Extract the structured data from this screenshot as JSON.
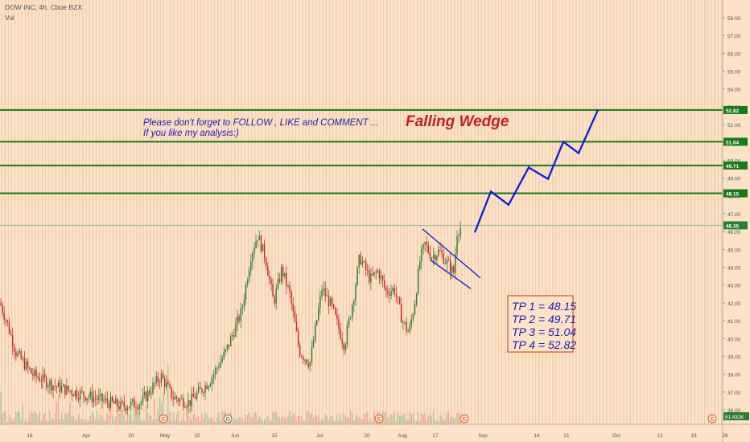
{
  "header": {
    "symbol_line": "DOW INC, 4h, Cboe BZX",
    "vol_label": "Vol"
  },
  "annotations": {
    "title": "Falling Wedge",
    "message_line1": "Please don't forget  to FOLLOW , LIKE and COMMENT ...",
    "message_line2": "If you like my analysis:)",
    "tp_lines": [
      "TP 1 = 48.15",
      "TP 2 = 49.71",
      "TP 3 = 51.04",
      "TP 4 = 52.82"
    ]
  },
  "colors": {
    "background": "#fbe2c8",
    "grid": "#f1c9a6",
    "up_candle": "#2e7d32",
    "down_candle": "#c62828",
    "tp_line": "#1a7a1a",
    "projection": "#0b1fd8",
    "title_red": "#c41f1f",
    "note_blue": "#1f1fb0"
  },
  "chart_data": {
    "type": "candlestick",
    "title": "DOW INC, 4h, Cboe BZX",
    "y_axis": {
      "ticks": [
        "36.00",
        "37.00",
        "38.00",
        "39.00",
        "40.00",
        "41.00",
        "42.00",
        "43.00",
        "44.00",
        "45.00",
        "46.00",
        "47.00",
        "48.00",
        "49.00",
        "50.00",
        "51.00",
        "52.00",
        "53.00",
        "54.00",
        "55.00",
        "56.00",
        "57.00",
        "58.00"
      ],
      "ylim": [
        35.6,
        58.5
      ]
    },
    "x_axis": {
      "ticks": [
        "16",
        "Apr",
        "20",
        "May",
        "15",
        "Jun",
        "15",
        "Jul",
        "20",
        "Aug",
        "17",
        "Sep",
        "14",
        "21",
        "Oct",
        "12",
        "19",
        "26"
      ]
    },
    "price_labels": [
      {
        "value": 52.82,
        "text": "52.82",
        "color": "#1a7a1a"
      },
      {
        "value": 51.04,
        "text": "51.04",
        "color": "#1a7a1a"
      },
      {
        "value": 49.71,
        "text": "49.71",
        "color": "#1a7a1a"
      },
      {
        "value": 48.15,
        "text": "48.15",
        "color": "#1a7a1a"
      },
      {
        "value": 46.35,
        "text": "46.35",
        "color": "#2e7d32"
      }
    ],
    "volume_label": "81.432K",
    "horizontal_levels": [
      52.82,
      51.04,
      49.71,
      48.15
    ],
    "current_price": 46.35,
    "event_markers": [
      "E",
      "E",
      "D",
      "E",
      "E",
      "E"
    ],
    "projection_path": [
      45.95,
      48.25,
      47.5,
      49.6,
      48.95,
      51.04,
      50.4,
      52.82
    ],
    "wedge": {
      "upper": [
        46.15,
        43.4
      ],
      "lower": [
        44.4,
        42.8
      ]
    },
    "candles_summary": {
      "start_close": 42.0,
      "low": 37.8,
      "high_jun": 46.1,
      "last_close": 46.35
    },
    "grid": true
  }
}
